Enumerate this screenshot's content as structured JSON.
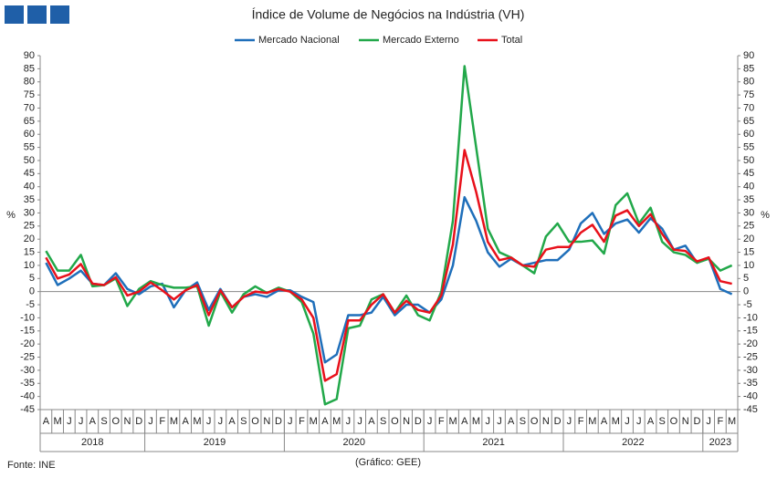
{
  "chart_data": {
    "type": "line",
    "title": "Índice de Volume de Negócios na Indústria (VH)",
    "source": "Fonte: INE",
    "credit": "(Gráfico: GEE)",
    "ylabel": "%",
    "y2label": "%",
    "categories": [
      "A",
      "M",
      "J",
      "J",
      "A",
      "S",
      "O",
      "N",
      "D",
      "J",
      "F",
      "M",
      "A",
      "M",
      "J",
      "J",
      "A",
      "S",
      "O",
      "N",
      "D",
      "J",
      "F",
      "M",
      "A",
      "M",
      "J",
      "J",
      "A",
      "S",
      "O",
      "N",
      "D",
      "J",
      "F",
      "M",
      "A",
      "M",
      "J",
      "J",
      "A",
      "S",
      "O",
      "N",
      "D",
      "J",
      "F",
      "M",
      "A",
      "M",
      "J",
      "J",
      "A",
      "S",
      "O",
      "N",
      "D",
      "J",
      "F",
      "M"
    ],
    "years": [
      "2018",
      "2019",
      "2020",
      "2021",
      "2022",
      "2023"
    ],
    "series": [
      {
        "name": "Mercado Nacional",
        "color": "#1f6fba",
        "values": [
          11,
          2.5,
          5,
          8,
          3,
          2.5,
          7,
          1,
          -1,
          2,
          3,
          -6,
          0.5,
          3.5,
          -7,
          1,
          -6,
          -2,
          -1,
          -2,
          0.5,
          0.5,
          -2,
          -4,
          -27,
          -24,
          -9,
          -9,
          -8,
          -2,
          -9,
          -5,
          -5,
          -8,
          -3,
          10,
          36,
          27,
          15,
          9.5,
          12.5,
          10,
          11,
          12,
          12,
          16,
          26,
          30,
          22,
          26,
          27.5,
          22.5,
          28,
          24,
          16,
          17.5,
          11,
          13,
          1,
          -1
        ]
      },
      {
        "name": "Mercado Externo",
        "color": "#22a84a",
        "values": [
          15.5,
          8,
          8,
          14,
          2,
          2.5,
          5,
          -5.5,
          1,
          4,
          2.5,
          1.5,
          1.5,
          2,
          -13,
          0,
          -8,
          -1,
          2,
          -0.5,
          1.5,
          0,
          -4,
          -16,
          -43,
          -41,
          -14,
          -13,
          -3,
          -1,
          -8,
          -1.5,
          -9,
          -11,
          0,
          27,
          86,
          55,
          24,
          15,
          13,
          10,
          7,
          21,
          26,
          19,
          19,
          19.5,
          14.5,
          33,
          37.5,
          26,
          32,
          19,
          15,
          14,
          11,
          12.5,
          8,
          10
        ]
      },
      {
        "name": "Total",
        "color": "#e8111b",
        "values": [
          13,
          5,
          6.5,
          10.5,
          3,
          2.5,
          5.5,
          -1.5,
          0,
          3.5,
          0.5,
          -3,
          0.5,
          2.5,
          -9,
          0.5,
          -6,
          -2,
          0,
          -0.5,
          1,
          0,
          -3,
          -10,
          -34,
          -31.5,
          -11,
          -11,
          -5,
          -1,
          -8,
          -3.5,
          -7,
          -8,
          -1.5,
          18,
          54,
          38,
          19,
          12,
          13,
          10,
          9.5,
          16,
          17,
          17,
          22.5,
          25.5,
          19,
          29,
          31,
          25,
          29.5,
          22,
          16,
          15.5,
          11.5,
          13,
          4,
          3
        ]
      }
    ],
    "ylim": [
      -45,
      90
    ],
    "yticks": [
      -45,
      -40,
      -35,
      -30,
      -25,
      -20,
      -15,
      -10,
      -5,
      0,
      5,
      10,
      15,
      20,
      25,
      30,
      35,
      40,
      45,
      50,
      55,
      60,
      65,
      70,
      75,
      80,
      85,
      90
    ],
    "y2lim": [
      -45,
      90
    ],
    "y2ticks": [
      -45,
      -40,
      -35,
      -30,
      -25,
      -20,
      -15,
      -10,
      -5,
      0,
      5,
      10,
      15,
      20,
      25,
      30,
      35,
      40,
      45,
      50,
      55,
      60,
      65,
      70,
      75,
      80,
      85,
      90
    ],
    "legend": "top"
  }
}
